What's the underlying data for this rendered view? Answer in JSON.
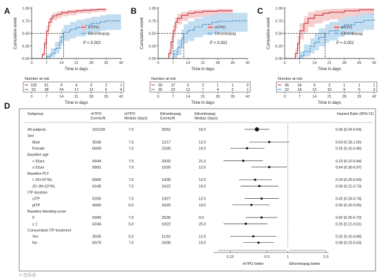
{
  "colors": {
    "rh_line": "#c8323c",
    "rh_band": "#f4c2c2",
    "el_line": "#3a86c4",
    "el_band": "#b8d8ee"
  },
  "km_common": {
    "y_label": "Cumulative event",
    "x_label": "Time in days",
    "x_ticks": [
      0,
      7,
      14,
      21,
      28,
      35,
      42
    ],
    "y_ticks": [
      "0.00",
      "0.25",
      "0.50",
      "0.75",
      "1.00"
    ],
    "risk_title": "Number at risk",
    "legend": [
      "rhTPO",
      "Eltrombopag"
    ],
    "median_ref_y": 0.5
  },
  "chart_data": [
    {
      "panel": "A",
      "type": "line",
      "xlim": [
        0,
        42
      ],
      "ylim": [
        0,
        1
      ],
      "pvalue": "P < 0.001",
      "series": [
        {
          "name": "rhTPO",
          "median": 7,
          "x": [
            0,
            4,
            5,
            6,
            7,
            8,
            9,
            10,
            12,
            14,
            17,
            21,
            24,
            28,
            31,
            35
          ],
          "y": [
            0,
            0,
            0.08,
            0.3,
            0.55,
            0.72,
            0.8,
            0.85,
            0.88,
            0.91,
            0.93,
            0.95,
            0.96,
            0.97,
            0.98,
            0.98
          ],
          "lower": [
            0,
            0,
            0.04,
            0.2,
            0.45,
            0.62,
            0.7,
            0.76,
            0.8,
            0.84,
            0.86,
            0.89,
            0.9,
            0.92,
            0.93,
            0.93
          ],
          "upper": [
            0,
            0,
            0.13,
            0.4,
            0.65,
            0.8,
            0.87,
            0.91,
            0.94,
            0.96,
            0.97,
            0.98,
            0.99,
            0.99,
            1,
            1
          ]
        },
        {
          "name": "Eltrombopag",
          "median": 15,
          "x": [
            0,
            6,
            7,
            9,
            11,
            13,
            14,
            15,
            18,
            21,
            25,
            28,
            32,
            35,
            42
          ],
          "y": [
            0,
            0,
            0.03,
            0.1,
            0.2,
            0.32,
            0.43,
            0.52,
            0.58,
            0.62,
            0.66,
            0.7,
            0.73,
            0.75,
            0.75
          ],
          "lower": [
            0,
            0,
            0,
            0.03,
            0.1,
            0.18,
            0.27,
            0.35,
            0.4,
            0.44,
            0.48,
            0.52,
            0.55,
            0.57,
            0.57
          ],
          "upper": [
            0,
            0,
            0.09,
            0.2,
            0.33,
            0.47,
            0.58,
            0.67,
            0.73,
            0.77,
            0.8,
            0.83,
            0.86,
            0.88,
            0.88
          ]
        }
      ],
      "risk": {
        "rhTPO": [
          "105",
          "61",
          "9",
          "4",
          "3",
          "2",
          "1"
        ],
        "Eltrombopag": [
          "52",
          "38",
          "24",
          "17",
          "13",
          "6",
          "4"
        ]
      }
    },
    {
      "panel": "B",
      "type": "line",
      "xlim": [
        0,
        42
      ],
      "ylim": [
        0,
        1
      ],
      "pvalue": "P < 0.001",
      "series": [
        {
          "name": "rhTPO",
          "median": 7,
          "x": [
            0,
            4,
            5,
            6,
            7,
            8,
            9,
            11,
            14,
            17,
            21,
            28,
            35
          ],
          "y": [
            0,
            0,
            0.1,
            0.33,
            0.55,
            0.72,
            0.8,
            0.86,
            0.9,
            0.92,
            0.94,
            0.95,
            0.95
          ],
          "lower": [
            0,
            0,
            0.03,
            0.2,
            0.42,
            0.6,
            0.68,
            0.75,
            0.8,
            0.82,
            0.85,
            0.86,
            0.86
          ],
          "upper": [
            0,
            0,
            0.18,
            0.45,
            0.67,
            0.82,
            0.89,
            0.93,
            0.96,
            0.97,
            0.98,
            0.99,
            0.99
          ]
        },
        {
          "name": "Eltrombopag",
          "median": 12,
          "x": [
            0,
            6,
            7,
            9,
            11,
            12,
            14,
            17,
            21,
            25,
            28,
            35,
            42
          ],
          "y": [
            0,
            0,
            0.08,
            0.22,
            0.4,
            0.5,
            0.56,
            0.63,
            0.68,
            0.72,
            0.74,
            0.75,
            0.75
          ],
          "lower": [
            0,
            0,
            0,
            0.07,
            0.2,
            0.3,
            0.35,
            0.42,
            0.47,
            0.5,
            0.52,
            0.53,
            0.53
          ],
          "upper": [
            0,
            0,
            0.18,
            0.38,
            0.58,
            0.68,
            0.74,
            0.8,
            0.85,
            0.88,
            0.9,
            0.91,
            0.91
          ]
        }
      ],
      "risk": {
        "rhTPO": [
          "60",
          "37",
          "3",
          "2",
          "1",
          "1",
          "0"
        ],
        "Eltrombopag": [
          "30",
          "22",
          "12",
          "7",
          "4",
          "2",
          "1"
        ]
      }
    },
    {
      "panel": "C",
      "type": "line",
      "xlim": [
        0,
        42
      ],
      "ylim": [
        0,
        1
      ],
      "pvalue": "P = 0.001",
      "series": [
        {
          "name": "rhTPO",
          "median": 7,
          "x": [
            0,
            3,
            5,
            6,
            7,
            9,
            11,
            14,
            18,
            21,
            28,
            35,
            42
          ],
          "y": [
            0,
            0,
            0.1,
            0.3,
            0.55,
            0.7,
            0.8,
            0.86,
            0.9,
            0.92,
            0.95,
            0.97,
            0.97
          ],
          "lower": [
            0,
            0,
            0.02,
            0.15,
            0.38,
            0.52,
            0.63,
            0.7,
            0.75,
            0.78,
            0.83,
            0.86,
            0.86
          ],
          "upper": [
            0,
            0,
            0.2,
            0.45,
            0.7,
            0.84,
            0.92,
            0.96,
            0.98,
            0.99,
            1,
            1,
            1
          ]
        },
        {
          "name": "Eltrombopag",
          "median": 19,
          "x": [
            0,
            6,
            7,
            9,
            12,
            14,
            16,
            19,
            21,
            25,
            28,
            33,
            37,
            42
          ],
          "y": [
            0,
            0,
            0.05,
            0.14,
            0.24,
            0.32,
            0.42,
            0.5,
            0.55,
            0.62,
            0.67,
            0.72,
            0.76,
            0.78
          ],
          "lower": [
            0,
            0,
            0,
            0.04,
            0.1,
            0.16,
            0.24,
            0.31,
            0.36,
            0.43,
            0.48,
            0.53,
            0.57,
            0.59
          ],
          "upper": [
            0,
            0,
            0.14,
            0.28,
            0.4,
            0.5,
            0.6,
            0.68,
            0.73,
            0.79,
            0.83,
            0.87,
            0.9,
            0.91
          ]
        }
      ],
      "risk": {
        "rhTPO": [
          "45",
          "24",
          "6",
          "2",
          "1",
          "1",
          "1"
        ],
        "Eltrombopag": [
          "22",
          "16",
          "12",
          "10",
          "9",
          "5",
          "3"
        ]
      }
    },
    {
      "panel": "D",
      "type": "forest",
      "xscale": "log",
      "xlim": [
        0.1,
        3.5
      ],
      "x_ticks": [
        0.15,
        0.5,
        1,
        3.5
      ],
      "x_tick_labels": [
        "0.15",
        "0.5",
        "1",
        "3.5"
      ],
      "reference": 1,
      "left_label": "rhTPO better",
      "right_label": "Eltrombopag better",
      "headers": [
        "Subgroup",
        "rhTPO\nEvents/N",
        "rhTPO\nMedian (days)",
        "Eltrombopag\nEvents/N",
        "Eltrombopag\nMedian (days)",
        "Hazard Ratio (95% CI)"
      ],
      "rows": [
        {
          "label": "All subjects",
          "indent": false,
          "rh_n": "101/105",
          "rh_med": "7.0",
          "el_n": "35/52",
          "el_med": "15.0",
          "hr": 0.36,
          "lo": 0.24,
          "hi": 0.54,
          "ci": "0.36 (0.24-0.54)",
          "big": true
        },
        {
          "label": "Sex",
          "indent": false,
          "header": true
        },
        {
          "label": "Male",
          "indent": true,
          "rh_n": "35/36",
          "rh_med": "7.0",
          "el_n": "12/17",
          "el_med": "12.0",
          "hr": 0.54,
          "lo": 0.28,
          "hi": 1.05,
          "ci": "0.54 (0.28-1.05)"
        },
        {
          "label": "Female",
          "indent": true,
          "rh_n": "66/69",
          "rh_med": "7.0",
          "el_n": "23/35",
          "el_med": "19.0",
          "hr": 0.26,
          "lo": 0.15,
          "hi": 0.46,
          "ci": "0.26 (0.15-0.46)"
        },
        {
          "label": "Baseline age",
          "indent": false,
          "header": true
        },
        {
          "label": "< 52yrs",
          "indent": true,
          "rh_n": "43/44",
          "rh_med": "7.0",
          "el_n": "20/32",
          "el_med": "21.0",
          "hr": 0.23,
          "lo": 0.12,
          "hi": 0.44,
          "ci": "0.23 (0.12-0.44)"
        },
        {
          "label": "≥ 52yrs",
          "indent": true,
          "rh_n": "58/61",
          "rh_med": "7.0",
          "el_n": "15/20",
          "el_med": "12.0",
          "hr": 0.54,
          "lo": 0.3,
          "hi": 0.97,
          "ci": "0.54 (0.30-0.97)"
        },
        {
          "label": "Baseline PLT",
          "indent": false,
          "header": true
        },
        {
          "label": "< 20×10^9/L",
          "indent": true,
          "rh_n": "60/60",
          "rh_med": "7.0",
          "el_n": "19/30",
          "el_med": "12.0",
          "hr": 0.34,
          "lo": 0.2,
          "hi": 0.59,
          "ci": "0.34 (0.20-0.59)"
        },
        {
          "label": "20~30×10^9/L",
          "indent": true,
          "rh_n": "41/45",
          "rh_med": "7.0",
          "el_n": "16/22",
          "el_med": "19.0",
          "hr": 0.39,
          "lo": 0.21,
          "hi": 0.73,
          "ci": "0.39 (0.21-0.73)"
        },
        {
          "label": "ITP duration",
          "indent": false,
          "header": true
        },
        {
          "label": "cITP",
          "indent": true,
          "rh_n": "52/55",
          "rh_med": "7.0",
          "el_n": "19/27",
          "el_med": "12.5",
          "hr": 0.42,
          "lo": 0.24,
          "hi": 0.74,
          "ci": "0.42 (0.24-0.74)"
        },
        {
          "label": "pITP",
          "indent": true,
          "rh_n": "49/50",
          "rh_med": "6.0",
          "el_n": "16/25",
          "el_med": "19.0",
          "hr": 0.3,
          "lo": 0.16,
          "hi": 0.55,
          "ci": "0.30 (0.16-0.55)"
        },
        {
          "label": "Baseline bleeding score",
          "indent": false,
          "header": true
        },
        {
          "label": "0",
          "indent": true,
          "rh_n": "59/60",
          "rh_med": "7.0",
          "el_n": "25/30",
          "el_med": "9.0",
          "hr": 0.42,
          "lo": 0.25,
          "hi": 0.7,
          "ci": "0.42 (0.25-0.70)"
        },
        {
          "label": "≥ 1",
          "indent": true,
          "rh_n": "42/45",
          "rh_med": "5.0",
          "el_n": "10/22",
          "el_med": "25.0",
          "hr": 0.25,
          "lo": 0.12,
          "hi": 0.51,
          "ci": "0.25 (0.12-0.51)"
        },
        {
          "label": "Concomitant ITP treatment",
          "indent": false,
          "header": true
        },
        {
          "label": "Yes",
          "indent": true,
          "rh_n": "35/35",
          "rh_med": "5.0",
          "el_n": "11/16",
          "el_med": "12.0",
          "hr": 0.32,
          "lo": 0.15,
          "hi": 0.68,
          "ci": "0.32 (0.15-0.68)"
        },
        {
          "label": "No",
          "indent": true,
          "rh_n": "66/70",
          "rh_med": "7.0",
          "el_n": "24/36",
          "el_med": "19.0",
          "hr": 0.38,
          "lo": 0.23,
          "hi": 0.63,
          "ci": "0.38 (0.23-0.63)"
        }
      ]
    }
  ],
  "watermark": "© 医脉通"
}
